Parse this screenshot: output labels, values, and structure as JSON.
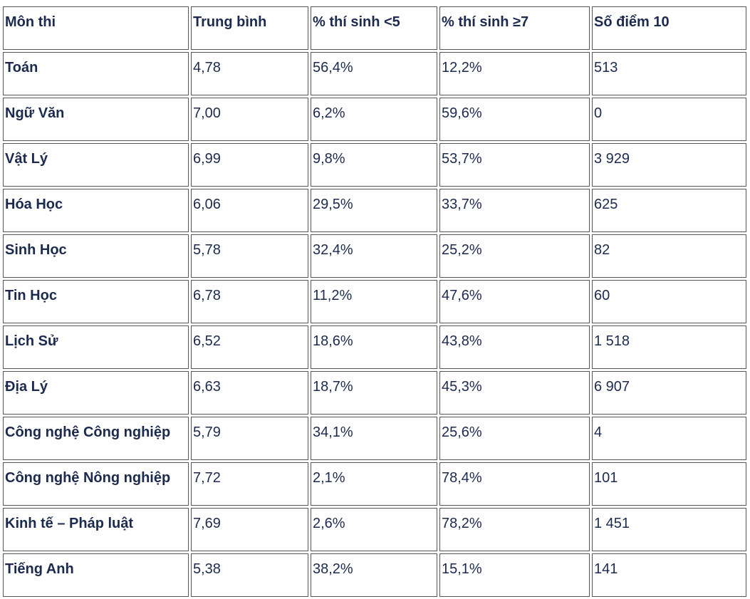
{
  "table": {
    "header": [
      "Môn thi",
      "Trung bình",
      "% thí sinh <5",
      "% thí sinh ≥7",
      "Số điểm 10"
    ],
    "rows": [
      [
        "Toán",
        "4,78",
        "56,4%",
        "12,2%",
        "513"
      ],
      [
        "Ngữ Văn",
        "7,00",
        "6,2%",
        "59,6%",
        "0"
      ],
      [
        "Vật Lý",
        "6,99",
        "9,8%",
        "53,7%",
        "3 929"
      ],
      [
        "Hóa Học",
        "6,06",
        "29,5%",
        "33,7%",
        "625"
      ],
      [
        "Sinh Học",
        "5,78",
        "32,4%",
        "25,2%",
        "82"
      ],
      [
        "Tin Học",
        "6,78",
        "11,2%",
        "47,6%",
        "60"
      ],
      [
        "Lịch Sử",
        "6,52",
        "18,6%",
        "43,8%",
        "1 518"
      ],
      [
        "Địa Lý",
        "6,63",
        "18,7%",
        "45,3%",
        "6 907"
      ],
      [
        "Công nghệ Công nghiệp",
        "5,79",
        "34,1%",
        "25,6%",
        "4"
      ],
      [
        "Công nghệ Nông nghiệp",
        "7,72",
        "2,1%",
        "78,4%",
        "101"
      ],
      [
        "Kinh tế – Pháp luật",
        "7,69",
        "2,6%",
        "78,2%",
        "1 451"
      ],
      [
        "Tiếng Anh",
        "5,38",
        "38,2%",
        "15,1%",
        "141"
      ]
    ]
  }
}
